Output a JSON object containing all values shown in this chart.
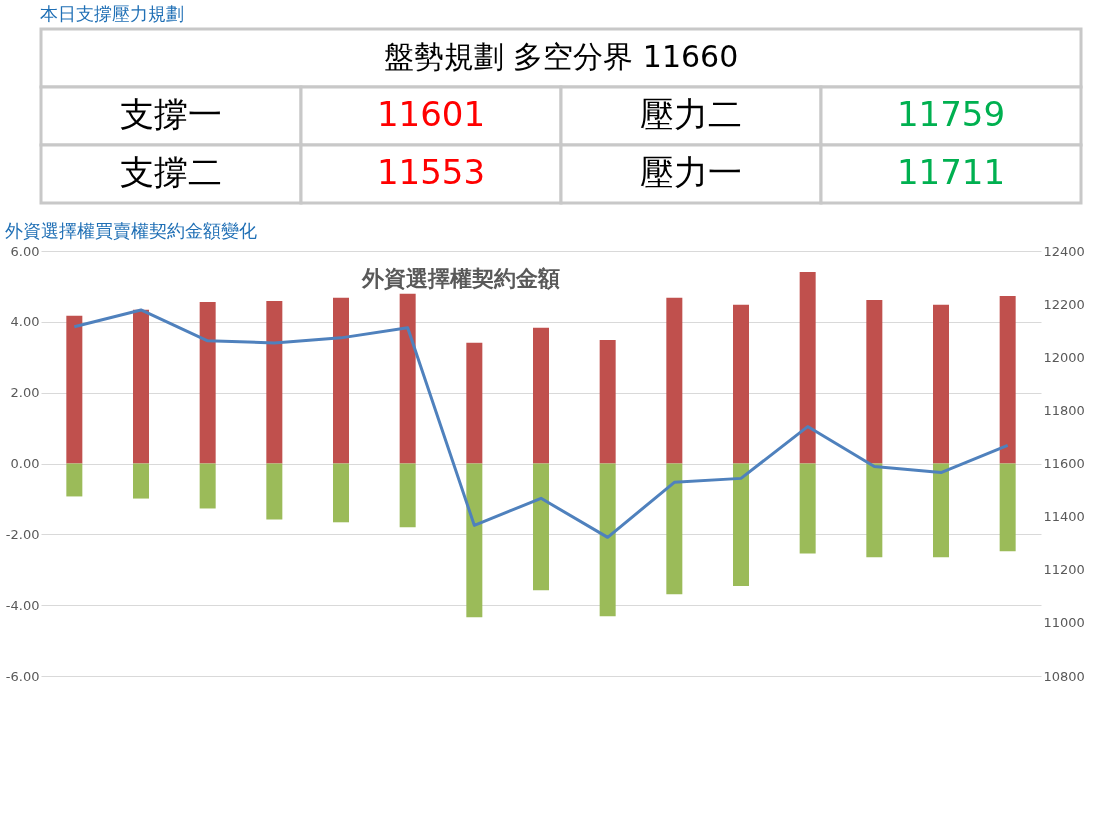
{
  "chart_data": [
    {
      "type": "other",
      "title": "本日支撐壓力規劃",
      "subtitle": "盤勢規劃 多空分界 11660",
      "annotations": [
        "支撐一",
        "11601",
        "壓力二",
        "11759",
        "支撐二",
        "11553",
        "壓力一",
        "11711"
      ],
      "colors": [
        "#000000",
        "#ff0000",
        "#000000",
        "#00b050",
        "#000000",
        "#ff0000",
        "#000000",
        "#00b050"
      ]
    },
    {
      "type": "bar",
      "title": "外資選擇權買賣權契約金額變化",
      "subtitle": "外資選擇權契約金額",
      "categories": [
        null,
        null,
        null,
        null,
        null,
        null,
        null,
        null,
        null,
        null,
        null,
        null,
        null,
        null,
        null
      ],
      "series": [
        {
          "color": "#c0504d",
          "values": [
            4.17,
            4.34,
            4.56,
            4.59,
            4.68,
            4.79,
            3.41,
            3.83,
            3.49,
            4.68,
            4.48,
            5.41,
            4.62,
            4.48,
            4.73
          ]
        },
        {
          "color": "#9bbb59",
          "values": [
            -0.93,
            -0.99,
            -1.27,
            -1.58,
            -1.66,
            -1.8,
            -4.34,
            -3.58,
            -4.31,
            -3.69,
            -3.46,
            -2.54,
            -2.65,
            -2.65,
            -2.48
          ]
        },
        {
          "type": "line",
          "axis": "y2",
          "color": "#4f81bd",
          "values": [
            12115,
            12178,
            12062,
            12054,
            12073,
            12111,
            11367,
            11469,
            11322,
            11529,
            11544,
            11739,
            11589,
            11566,
            11668
          ]
        }
      ],
      "ylim": [
        -6,
        6
      ],
      "yticks": [
        {
          "value": -6,
          "label": "-6.00"
        },
        {
          "value": -4,
          "label": "-4.00"
        },
        {
          "value": -2,
          "label": "-2.00"
        },
        {
          "value": 0,
          "label": "0.00"
        },
        {
          "value": 2,
          "label": "2.00"
        },
        {
          "value": 4,
          "label": "4.00"
        },
        {
          "value": 6,
          "label": "6.00"
        }
      ],
      "y2lim": [
        10800,
        12400
      ],
      "y2ticks": [
        10800,
        11000,
        11200,
        11400,
        11600,
        11800,
        12000,
        12200,
        12400
      ],
      "stacked": true,
      "grid": "y"
    }
  ]
}
